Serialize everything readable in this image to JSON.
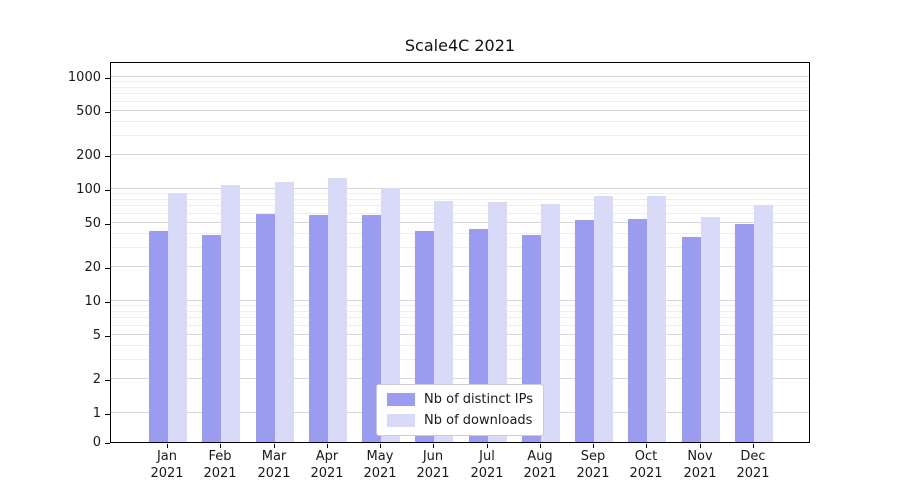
{
  "chart_data": {
    "type": "bar",
    "title": "Scale4C 2021",
    "categories": [
      "Jan 2021",
      "Feb 2021",
      "Mar 2021",
      "Apr 2021",
      "May 2021",
      "Jun 2021",
      "Jul 2021",
      "Aug 2021",
      "Sep 2021",
      "Oct 2021",
      "Nov 2021",
      "Dec 2021"
    ],
    "series": [
      {
        "name": "Nb of distinct IPs",
        "color": "#9b9bef",
        "values": [
          42,
          39,
          60,
          59,
          59,
          42,
          44,
          39,
          53,
          54,
          37,
          49
        ]
      },
      {
        "name": "Nb of downloads",
        "color": "#d9d9f8",
        "values": [
          93,
          108,
          115,
          125,
          103,
          78,
          76,
          74,
          86,
          87,
          56,
          72
        ]
      }
    ],
    "yscale": "symlog",
    "y_ticks": [
      0,
      1,
      2,
      5,
      10,
      20,
      50,
      100,
      200,
      500,
      1000
    ],
    "ylim": [
      0,
      1300
    ],
    "grid": true,
    "legend_position": "lower center"
  }
}
